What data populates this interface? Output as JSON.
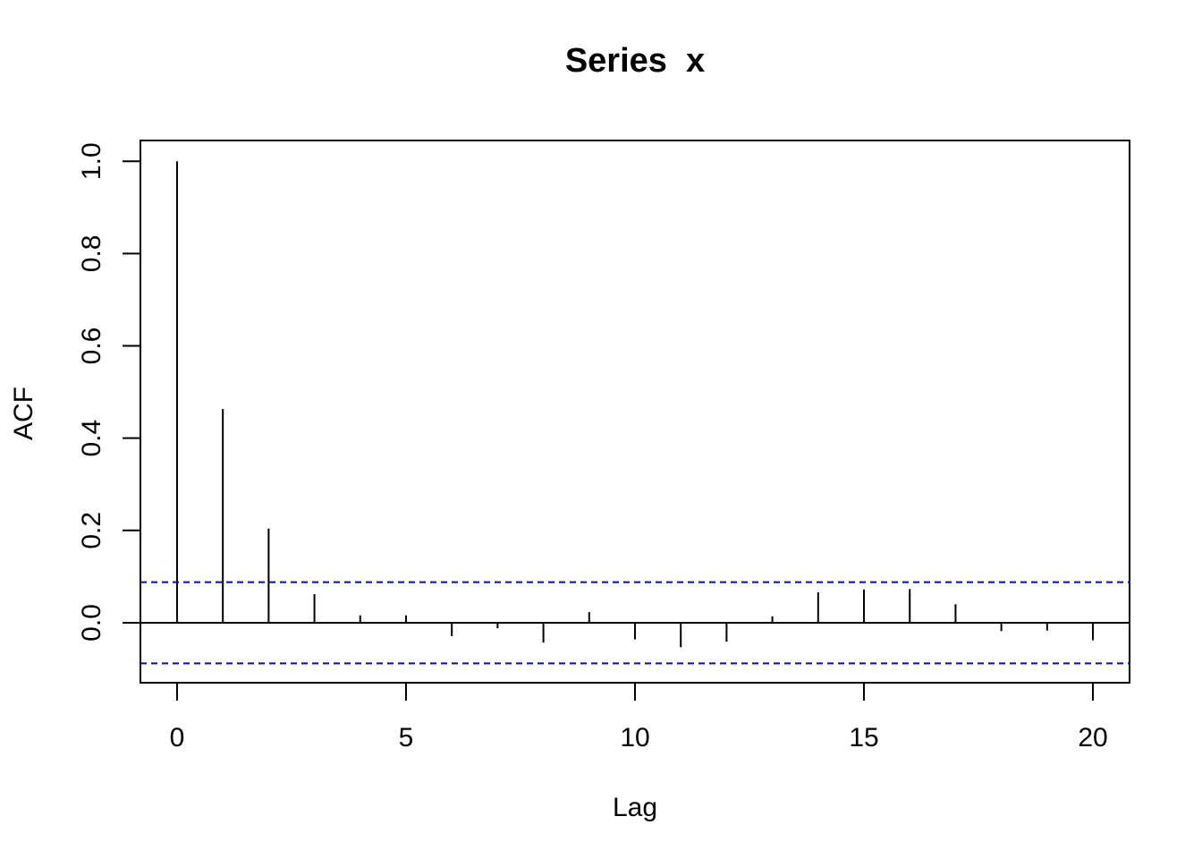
{
  "chart_data": {
    "type": "bar",
    "title": "Series  x",
    "xlabel": "Lag",
    "ylabel": "ACF",
    "xlim": [
      -0.8,
      20.8
    ],
    "ylim": [
      -0.13,
      1.045
    ],
    "x_ticks": [
      0,
      5,
      10,
      15,
      20
    ],
    "x_tick_labels": [
      "0",
      "5",
      "10",
      "15",
      "20"
    ],
    "y_ticks": [
      0.0,
      0.2,
      0.4,
      0.6,
      0.8,
      1.0
    ],
    "y_tick_labels": [
      "0.0",
      "0.2",
      "0.4",
      "0.6",
      "0.8",
      "1.0"
    ],
    "lags": [
      0,
      1,
      2,
      3,
      4,
      5,
      6,
      7,
      8,
      9,
      10,
      11,
      12,
      13,
      14,
      15,
      16,
      17,
      18,
      19,
      20
    ],
    "acf": [
      1.0,
      0.463,
      0.204,
      0.062,
      0.016,
      0.016,
      -0.029,
      -0.012,
      -0.043,
      0.023,
      -0.036,
      -0.053,
      -0.041,
      0.014,
      0.066,
      0.072,
      0.073,
      0.04,
      -0.018,
      -0.017,
      -0.038
    ],
    "confidence_bound": 0.088,
    "confidence_color": "#0000ff",
    "line_color": "#000000",
    "grid": false
  }
}
